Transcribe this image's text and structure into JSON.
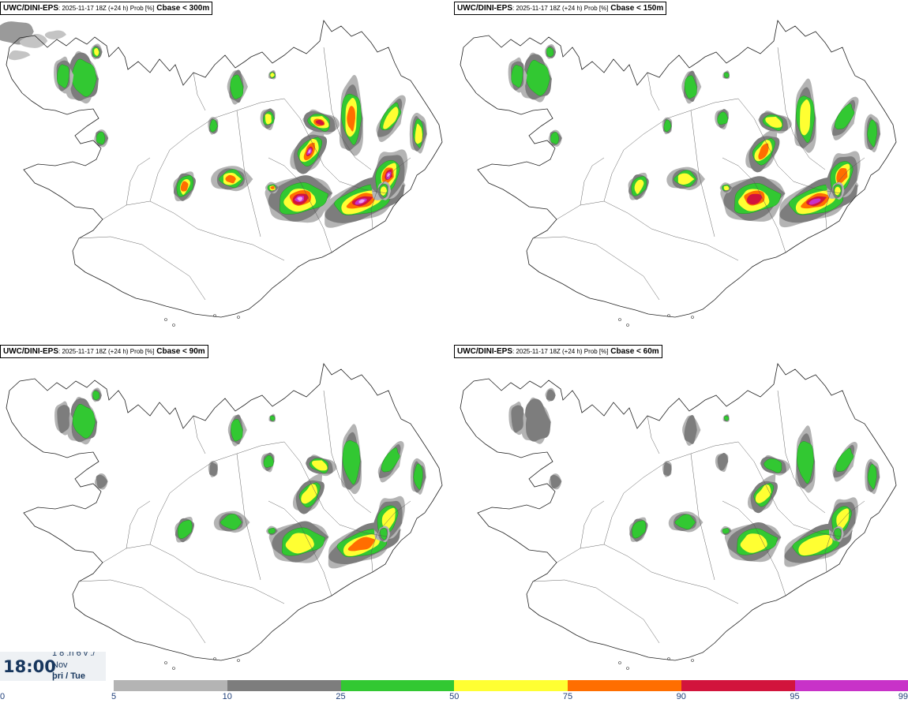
{
  "panels": [
    {
      "model": "UWC/DINI-EPS",
      "meta": ": 2025-11-17 18Z (+24 h) Prob [%]",
      "variable": "Cbase < 300m",
      "intensity": 1.25
    },
    {
      "model": "UWC/DINI-EPS",
      "meta": ": 2025-11-17 18Z (+24 h) Prob [%]",
      "variable": "Cbase < 150m",
      "intensity": 0.95
    },
    {
      "model": "UWC/DINI-EPS",
      "meta": ": 2025-11-17 18Z (+24 h) Prob [%]",
      "variable": "Cbase < 90m",
      "intensity": 0.75
    },
    {
      "model": "UWC/DINI-EPS",
      "meta": ": 2025-11-17 18Z (+24 h) Prob [%]",
      "variable": "Cbase < 60m",
      "intensity": 0.62
    }
  ],
  "time": {
    "clock": "18:00",
    "line1": "1 8 .n 6 v ./",
    "line2": "Nov",
    "line3": "þri / Tue"
  },
  "colorbar": {
    "ticks": [
      "0",
      "5",
      "10",
      "25",
      "50",
      "75",
      "90",
      "95",
      "99"
    ],
    "colors": [
      "#ffffff",
      "#b4b4b4",
      "#7d7d7d",
      "#32c832",
      "#ffff32",
      "#ff6e00",
      "#d2143c",
      "#c832c8",
      "#f0a0f0"
    ]
  }
}
